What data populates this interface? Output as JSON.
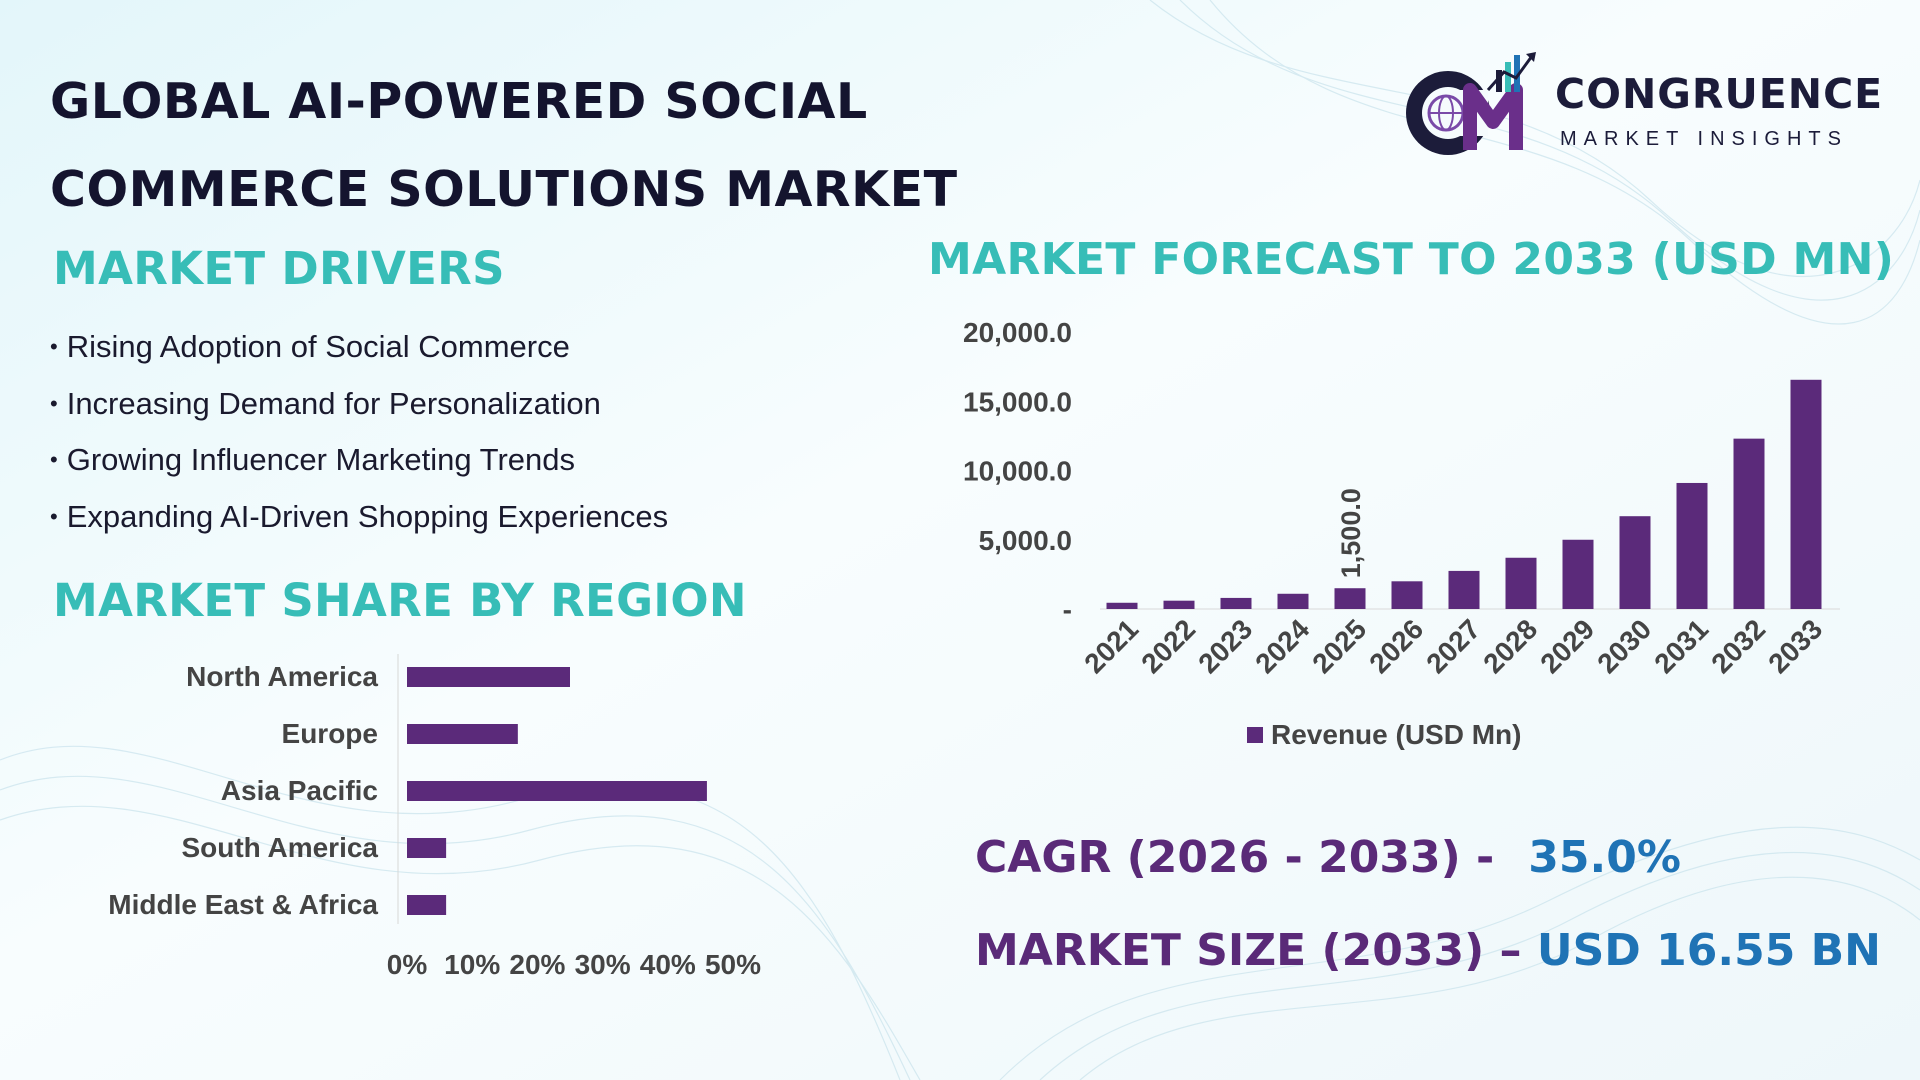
{
  "page": {
    "title_line1": "GLOBAL AI-POWERED SOCIAL",
    "title_line2": "COMMERCE SOLUTIONS MARKET"
  },
  "logo": {
    "name": "CONGRUENCE",
    "tagline": "MARKET INSIGHTS",
    "mark_letters": "CM"
  },
  "drivers": {
    "heading": "MARKET DRIVERS",
    "items": [
      "Rising Adoption of Social Commerce",
      "Increasing Demand for Personalization",
      "Growing Influencer Marketing Trends",
      "Expanding AI-Driven Shopping Experiences"
    ]
  },
  "region_section": {
    "heading": "MARKET SHARE BY REGION"
  },
  "forecast_section": {
    "heading": "MARKET FORECAST TO 2033 (USD MN)"
  },
  "stats": {
    "cagr_label": "CAGR (2026 - 2033) -",
    "cagr_value": "35.0%",
    "size_label": "MARKET SIZE (2033) –",
    "size_value": "USD 16.55 BN"
  },
  "colors": {
    "bar": "#5b2a7a",
    "heading_teal": "#37bdb7",
    "title_navy": "#14142e",
    "stat_purple": "#5a2a78",
    "stat_blue": "#1f73b5"
  },
  "chart_data": [
    {
      "type": "bar",
      "orientation": "horizontal",
      "categories": [
        "North America",
        "Europe",
        "Asia Pacific",
        "South America",
        "Middle East & Africa"
      ],
      "values": [
        25,
        17,
        46,
        6,
        6
      ],
      "x_tick_labels": [
        "0%",
        "10%",
        "20%",
        "30%",
        "40%",
        "50%"
      ],
      "xlim": [
        0,
        50
      ],
      "grid": false
    },
    {
      "type": "bar",
      "orientation": "vertical",
      "categories": [
        "2021",
        "2022",
        "2023",
        "2024",
        "2025",
        "2026",
        "2027",
        "2028",
        "2029",
        "2030",
        "2031",
        "2032",
        "2033"
      ],
      "series": [
        {
          "name": "Revenue (USD Mn)",
          "values": [
            450,
            600,
            800,
            1100,
            1500,
            2000,
            2750,
            3700,
            5000,
            6700,
            9100,
            12300,
            16550
          ]
        }
      ],
      "y_tick_labels": [
        "-",
        "5,000.0",
        "10,000.0",
        "15,000.0",
        "20,000.0"
      ],
      "y_ticks": [
        0,
        5000,
        10000,
        15000,
        20000
      ],
      "ylim": [
        0,
        20000
      ],
      "data_labels": [
        {
          "category": "2025",
          "text": "1,500.0"
        }
      ],
      "legend_position": "bottom",
      "grid": false
    }
  ]
}
